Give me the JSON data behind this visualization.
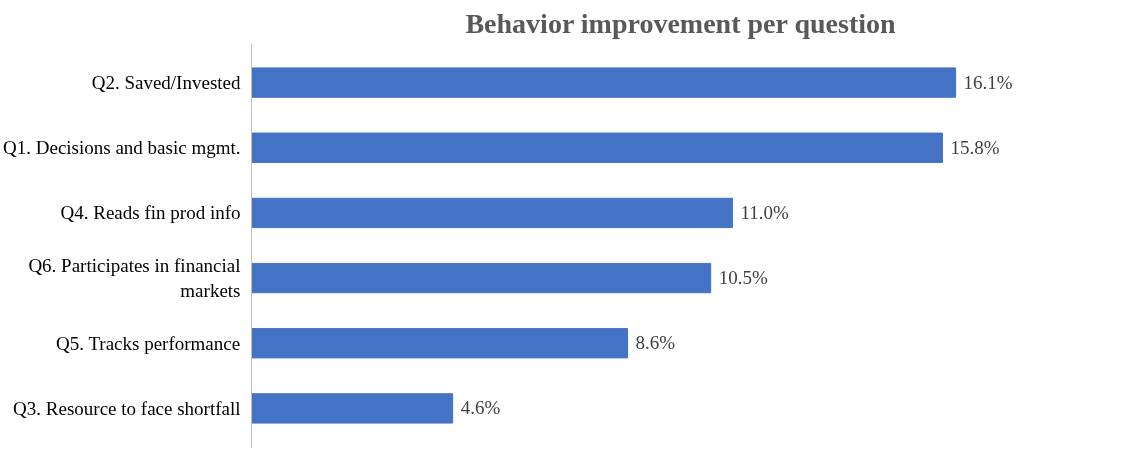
{
  "chart_data": {
    "type": "bar",
    "orientation": "horizontal",
    "title": "Behavior improvement per question",
    "categories": [
      "Q2. Saved/Invested",
      "Q1. Decisions and basic mgmt.",
      "Q4. Reads fin prod info",
      "Q6. Participates in financial markets",
      "Q5. Tracks performance",
      "Q3. Resource to face shortfall"
    ],
    "values": [
      16.1,
      15.8,
      11.0,
      10.5,
      8.6,
      4.6
    ],
    "value_labels": [
      "16.1%",
      "15.8%",
      "11.0%",
      "10.5%",
      "8.6%",
      "4.6%"
    ],
    "color": "#4472c4",
    "grid": false
  }
}
